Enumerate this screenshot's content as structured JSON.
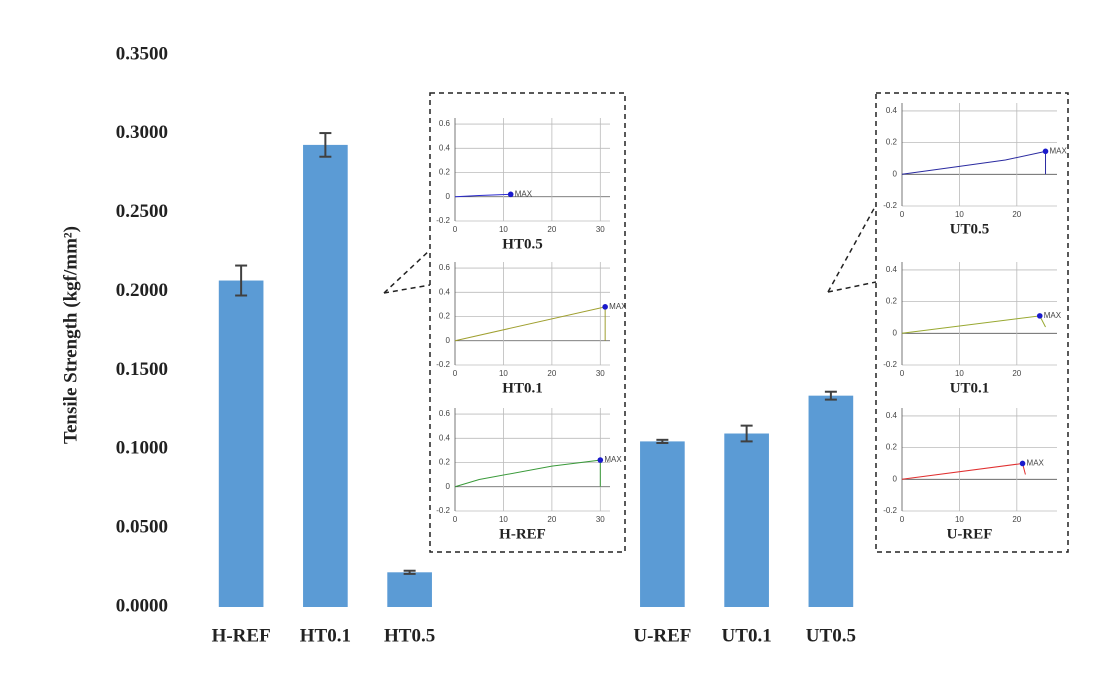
{
  "chart_data": [
    {
      "type": "bar",
      "y_label": "Tensile Strength (kgf/mm²)",
      "categories": [
        "H-REF",
        "HT0.1",
        "HT0.5",
        null,
        null,
        "U-REF",
        "UT0.1",
        "UT0.5"
      ],
      "values": [
        0.207,
        0.293,
        0.022,
        null,
        null,
        0.105,
        0.11,
        0.134
      ],
      "errors": [
        0.0095,
        0.0075,
        0.001,
        null,
        null,
        0.001,
        0.005,
        0.0025
      ],
      "color": "#5b9bd5",
      "grid": false,
      "ylim": [
        0,
        0.35
      ],
      "yticks": [
        {
          "value": 0,
          "label": "0.0000"
        },
        {
          "value": 0.05,
          "label": "0.0500"
        },
        {
          "value": 0.1,
          "label": "0.1000"
        },
        {
          "value": 0.15,
          "label": "0.1500"
        },
        {
          "value": 0.2,
          "label": "0.2000"
        },
        {
          "value": 0.25,
          "label": "0.2500"
        },
        {
          "value": 0.3,
          "label": "0.3000"
        },
        {
          "value": 0.35,
          "label": "0.3500"
        }
      ]
    },
    {
      "type": "line",
      "title": "HT0.5",
      "annotation": "MAX",
      "color": "#2b2bd0",
      "grid": true,
      "x": [
        0,
        5,
        11.5
      ],
      "values": [
        0,
        0.01,
        0.02
      ],
      "xlim": [
        0,
        32
      ],
      "ylim": [
        -0.2,
        0.65
      ],
      "xticks": [
        0,
        10,
        20,
        30
      ],
      "yticks": [
        -0.2,
        0,
        0.2,
        0.4,
        0.6
      ]
    },
    {
      "type": "line",
      "title": "HT0.1",
      "annotation": "MAX",
      "color": "#a0a030",
      "grid": true,
      "x": [
        0,
        31,
        31
      ],
      "values": [
        0,
        0.28,
        0
      ],
      "xlim": [
        0,
        32
      ],
      "ylim": [
        -0.2,
        0.65
      ],
      "xticks": [
        0,
        10,
        20,
        30
      ],
      "yticks": [
        -0.2,
        0,
        0.2,
        0.4,
        0.6
      ]
    },
    {
      "type": "line",
      "title": "H-REF",
      "annotation": "MAX",
      "color": "#3a9a3a",
      "grid": true,
      "x": [
        0,
        5,
        20,
        30,
        30
      ],
      "values": [
        0,
        0.06,
        0.17,
        0.22,
        0
      ],
      "xlim": [
        0,
        32
      ],
      "ylim": [
        -0.2,
        0.65
      ],
      "xticks": [
        0,
        10,
        20,
        30
      ],
      "yticks": [
        -0.2,
        0,
        0.2,
        0.4,
        0.6
      ]
    },
    {
      "type": "line",
      "title": "UT0.5",
      "annotation": "MAX",
      "color": "#2a2aa0",
      "grid": true,
      "x": [
        0,
        10,
        18,
        25,
        25
      ],
      "values": [
        0,
        0.05,
        0.09,
        0.145,
        0
      ],
      "xlim": [
        0,
        27
      ],
      "ylim": [
        -0.2,
        0.45
      ],
      "xticks": [
        0,
        10,
        20
      ],
      "yticks": [
        -0.2,
        0,
        0.2,
        0.4
      ]
    },
    {
      "type": "line",
      "title": "UT0.1",
      "annotation": "MAX",
      "color": "#98a830",
      "grid": true,
      "x": [
        0,
        24,
        25
      ],
      "values": [
        0,
        0.11,
        0.04
      ],
      "xlim": [
        0,
        27
      ],
      "ylim": [
        -0.2,
        0.45
      ],
      "xticks": [
        0,
        10,
        20
      ],
      "yticks": [
        -0.2,
        0,
        0.2,
        0.4
      ]
    },
    {
      "type": "line",
      "title": "U-REF",
      "annotation": "MAX",
      "color": "#e03030",
      "grid": true,
      "x": [
        0,
        21,
        21.5
      ],
      "values": [
        0,
        0.1,
        0.03
      ],
      "xlim": [
        0,
        27
      ],
      "ylim": [
        -0.2,
        0.45
      ],
      "xticks": [
        0,
        10,
        20
      ],
      "yticks": [
        -0.2,
        0,
        0.2,
        0.4
      ]
    }
  ]
}
